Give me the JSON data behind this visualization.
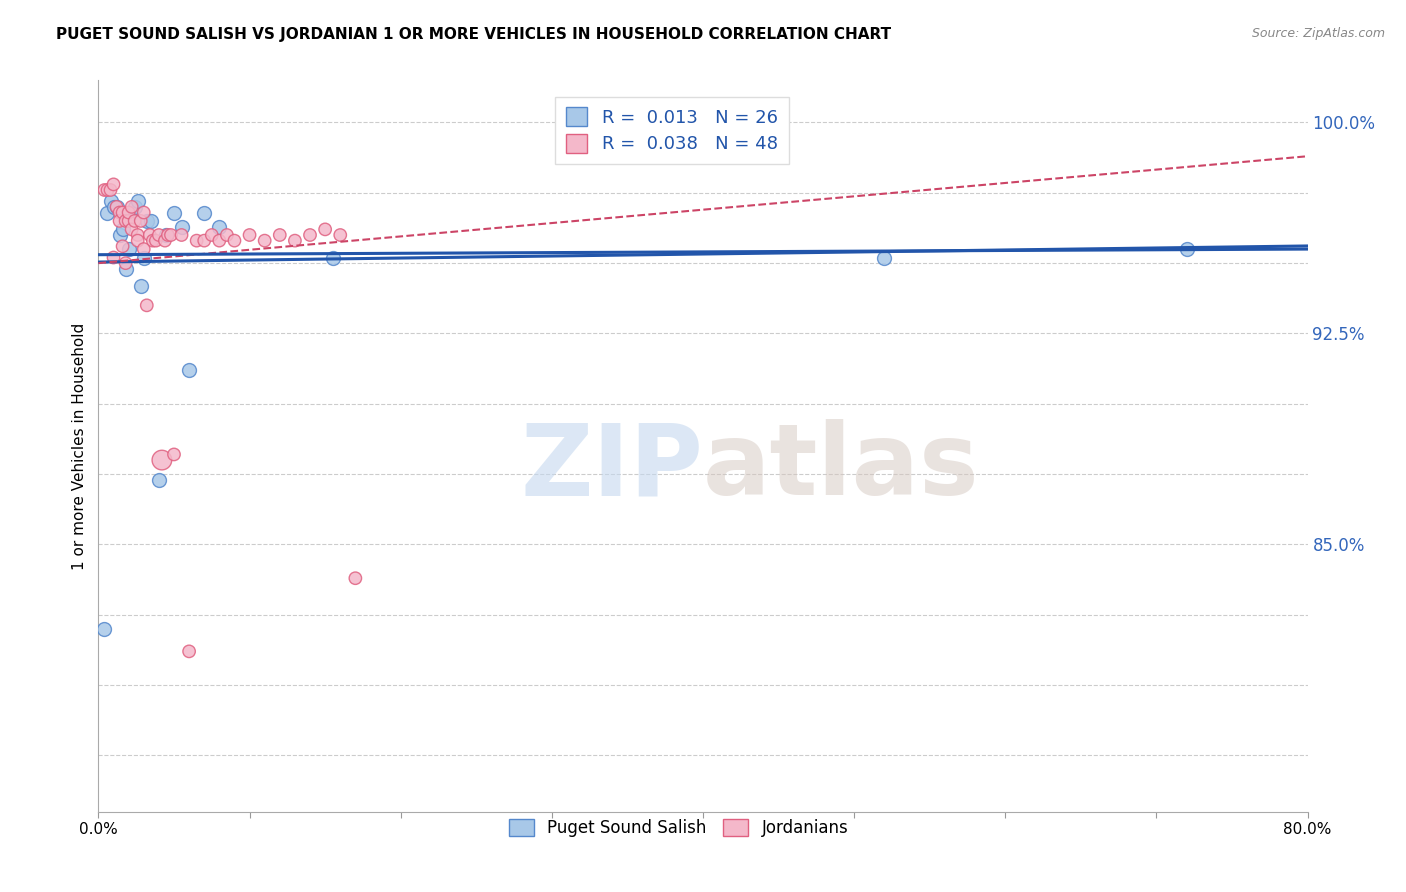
{
  "title": "PUGET SOUND SALISH VS JORDANIAN 1 OR MORE VEHICLES IN HOUSEHOLD CORRELATION CHART",
  "source": "Source: ZipAtlas.com",
  "ylabel": "1 or more Vehicles in Household",
  "xlim": [
    0.0,
    0.8
  ],
  "ylim": [
    0.755,
    1.015
  ],
  "ytick_vals": [
    0.775,
    0.8,
    0.825,
    0.85,
    0.875,
    0.9,
    0.925,
    0.95,
    0.975,
    1.0
  ],
  "ytick_labels": [
    "",
    "",
    "",
    "85.0%",
    "",
    "",
    "92.5%",
    "",
    "",
    "100.0%"
  ],
  "xticks": [
    0.0,
    0.1,
    0.2,
    0.3,
    0.4,
    0.5,
    0.6,
    0.7,
    0.8
  ],
  "xtick_labels": [
    "0.0%",
    "",
    "",
    "",
    "",
    "",
    "",
    "",
    "80.0%"
  ],
  "blue_R": "0.013",
  "blue_N": "26",
  "pink_R": "0.038",
  "pink_N": "48",
  "blue_color": "#a8c8e8",
  "pink_color": "#f4b8ca",
  "blue_edge_color": "#5588cc",
  "pink_edge_color": "#e06080",
  "blue_line_color": "#2255aa",
  "pink_line_color": "#cc4466",
  "legend_label_blue": "Puget Sound Salish",
  "legend_label_pink": "Jordanians",
  "watermark_zip": "ZIP",
  "watermark_atlas": "atlas",
  "blue_scatter_x": [
    0.004,
    0.006,
    0.008,
    0.01,
    0.012,
    0.014,
    0.016,
    0.018,
    0.02,
    0.022,
    0.024,
    0.026,
    0.028,
    0.03,
    0.032,
    0.035,
    0.04,
    0.045,
    0.05,
    0.055,
    0.06,
    0.07,
    0.08,
    0.155,
    0.52,
    0.72
  ],
  "blue_scatter_y": [
    0.82,
    0.968,
    0.972,
    0.97,
    0.97,
    0.96,
    0.962,
    0.948,
    0.955,
    0.968,
    0.97,
    0.972,
    0.942,
    0.952,
    0.965,
    0.965,
    0.873,
    0.96,
    0.968,
    0.963,
    0.912,
    0.968,
    0.963,
    0.952,
    0.952,
    0.955
  ],
  "pink_scatter_x": [
    0.004,
    0.006,
    0.008,
    0.01,
    0.01,
    0.012,
    0.014,
    0.014,
    0.016,
    0.016,
    0.018,
    0.018,
    0.02,
    0.02,
    0.022,
    0.022,
    0.024,
    0.026,
    0.026,
    0.028,
    0.03,
    0.03,
    0.032,
    0.034,
    0.036,
    0.038,
    0.04,
    0.042,
    0.044,
    0.046,
    0.048,
    0.05,
    0.055,
    0.06,
    0.065,
    0.07,
    0.075,
    0.08,
    0.085,
    0.09,
    0.1,
    0.11,
    0.12,
    0.13,
    0.14,
    0.15,
    0.16,
    0.17
  ],
  "pink_scatter_y": [
    0.976,
    0.976,
    0.976,
    0.978,
    0.952,
    0.97,
    0.968,
    0.965,
    0.968,
    0.956,
    0.965,
    0.95,
    0.965,
    0.968,
    0.962,
    0.97,
    0.965,
    0.96,
    0.958,
    0.965,
    0.955,
    0.968,
    0.935,
    0.96,
    0.958,
    0.958,
    0.96,
    0.88,
    0.958,
    0.96,
    0.96,
    0.882,
    0.96,
    0.812,
    0.958,
    0.958,
    0.96,
    0.958,
    0.96,
    0.958,
    0.96,
    0.958,
    0.96,
    0.958,
    0.96,
    0.962,
    0.96,
    0.838
  ],
  "pink_sizes": [
    80,
    80,
    80,
    80,
    80,
    80,
    80,
    80,
    80,
    80,
    80,
    80,
    80,
    80,
    80,
    80,
    80,
    80,
    80,
    80,
    80,
    80,
    80,
    80,
    80,
    80,
    80,
    200,
    80,
    80,
    80,
    80,
    80,
    80,
    80,
    80,
    80,
    80,
    80,
    80,
    80,
    80,
    80,
    80,
    80,
    80,
    80,
    80
  ]
}
